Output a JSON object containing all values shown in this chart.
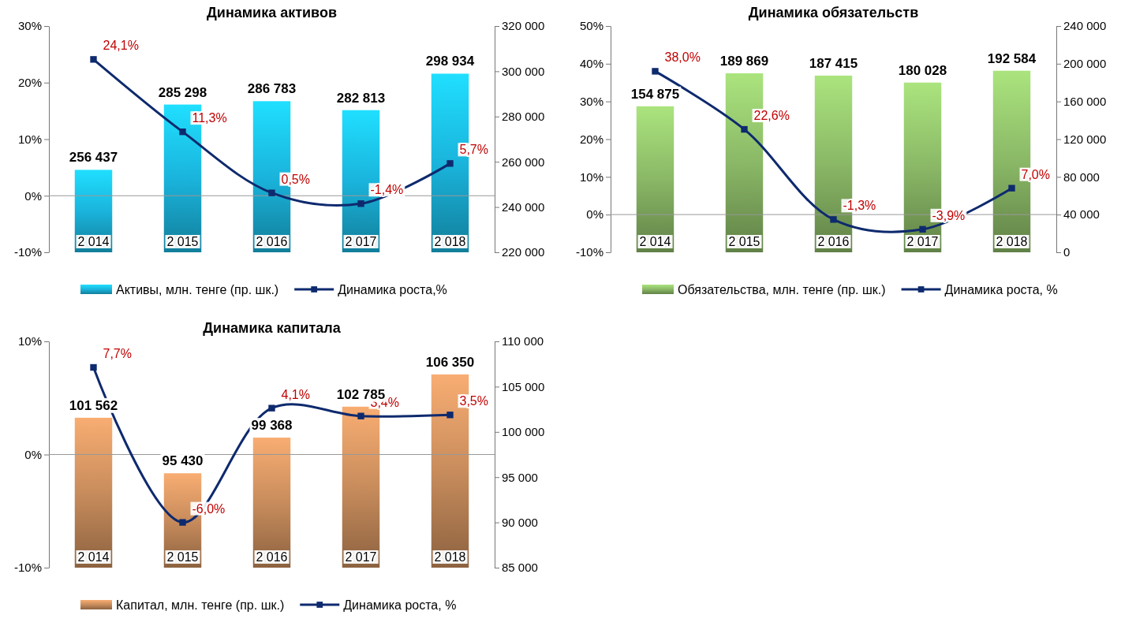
{
  "chart_data": [
    {
      "type": "bar",
      "title": "Динамика активов",
      "categories": [
        "2 014",
        "2 015",
        "2 016",
        "2 017",
        "2 018"
      ],
      "ylim": [
        -10,
        30
      ],
      "yticks": [
        {
          "value": -10,
          "label": "-10%"
        },
        {
          "value": 0,
          "label": "0%"
        },
        {
          "value": 10,
          "label": "10%"
        },
        {
          "value": 20,
          "label": "20%"
        },
        {
          "value": 30,
          "label": "30%"
        }
      ],
      "y2lim": [
        220000,
        320000
      ],
      "y2ticks": [
        {
          "value": 220000,
          "label": "220 000"
        },
        {
          "value": 240000,
          "label": "240 000"
        },
        {
          "value": 260000,
          "label": "260 000"
        },
        {
          "value": 280000,
          "label": "280 000"
        },
        {
          "value": 300000,
          "label": "300 000"
        },
        {
          "value": 320000,
          "label": "320 000"
        }
      ],
      "legend": "bottom",
      "marker": "square",
      "series": [
        {
          "name": "Активы, млн. тенге (пр. шк.)",
          "axis": "y2",
          "color": "#1ab4dc",
          "values": [
            256437,
            285298,
            286783,
            282813,
            298934
          ],
          "value_labels": [
            "256 437",
            "285 298",
            "286 783",
            "282 813",
            "298 934"
          ]
        },
        {
          "name": "Динамика роста,%",
          "type": "line",
          "color": "#0e2a6e",
          "values": [
            24.1,
            11.3,
            0.5,
            -1.4,
            5.7
          ],
          "value_labels": [
            "24,1%",
            "11,3%",
            "0,5%",
            "-1,4%",
            "5,7%"
          ]
        }
      ]
    },
    {
      "type": "bar",
      "title": "Динамика обязательств",
      "categories": [
        "2 014",
        "2 015",
        "2 016",
        "2 017",
        "2 018"
      ],
      "ylim": [
        -10,
        50
      ],
      "yticks": [
        {
          "value": -10,
          "label": "-10%"
        },
        {
          "value": 0,
          "label": "0%"
        },
        {
          "value": 10,
          "label": "10%"
        },
        {
          "value": 20,
          "label": "20%"
        },
        {
          "value": 30,
          "label": "30%"
        },
        {
          "value": 40,
          "label": "40%"
        },
        {
          "value": 50,
          "label": "50%"
        }
      ],
      "y2lim": [
        0,
        240000
      ],
      "y2ticks": [
        0,
        {
          "value": 40000,
          "label": "40 000"
        },
        {
          "value": 80000,
          "label": "80 000"
        },
        {
          "value": 120000,
          "label": "120 000"
        },
        {
          "value": 160000,
          "label": "160 000"
        },
        {
          "value": 200000,
          "label": "200 000"
        },
        {
          "value": 240000,
          "label": "240 000"
        }
      ],
      "legend": "bottom",
      "marker": "square",
      "series": [
        {
          "name": "Обязательства, млн. тенге (пр. шк.)",
          "axis": "y2",
          "color": "#8ab866",
          "values": [
            154875,
            189869,
            187415,
            180028,
            192584
          ],
          "value_labels": [
            "154 875",
            "189 869",
            "187 415",
            "180 028",
            "192 584"
          ]
        },
        {
          "name": "Динамика роста, %",
          "type": "line",
          "color": "#0e2a6e",
          "values": [
            38.0,
            22.6,
            -1.3,
            -3.9,
            7.0
          ],
          "value_labels": [
            "38,0%",
            "22,6%",
            "-1,3%",
            "-3,9%",
            "7,0%"
          ]
        }
      ]
    },
    {
      "type": "bar",
      "title": "Динамика капитала",
      "categories": [
        "2 014",
        "2 015",
        "2 016",
        "2 017",
        "2 018"
      ],
      "ylim": [
        -10,
        10
      ],
      "yticks": [
        {
          "value": -10,
          "label": "-10%"
        },
        {
          "value": 0,
          "label": "0%"
        },
        {
          "value": 10,
          "label": "10%"
        }
      ],
      "y2lim": [
        85000,
        110000
      ],
      "y2ticks": [
        {
          "value": 85000,
          "label": "85 000"
        },
        {
          "value": 90000,
          "label": "90 000"
        },
        {
          "value": 95000,
          "label": "95 000"
        },
        {
          "value": 100000,
          "label": "100 000"
        },
        {
          "value": 105000,
          "label": "105 000"
        },
        {
          "value": 110000,
          "label": "110 000"
        }
      ],
      "legend": "bottom",
      "marker": "square",
      "series": [
        {
          "name": "Капитал, млн. тенге (пр. шк.)",
          "axis": "y2",
          "color": "#c88c5c",
          "values": [
            101562,
            95430,
            99368,
            102785,
            106350
          ],
          "value_labels": [
            "101 562",
            "95 430",
            "99 368",
            "102 785",
            "106 350"
          ]
        },
        {
          "name": "Динамика роста, %",
          "type": "line",
          "color": "#0e2a6e",
          "values": [
            7.7,
            -6.0,
            4.1,
            3.4,
            3.5
          ],
          "value_labels": [
            "7,7%",
            "-6,0%",
            "4,1%",
            "3,4%",
            "3,5%"
          ]
        }
      ]
    }
  ]
}
